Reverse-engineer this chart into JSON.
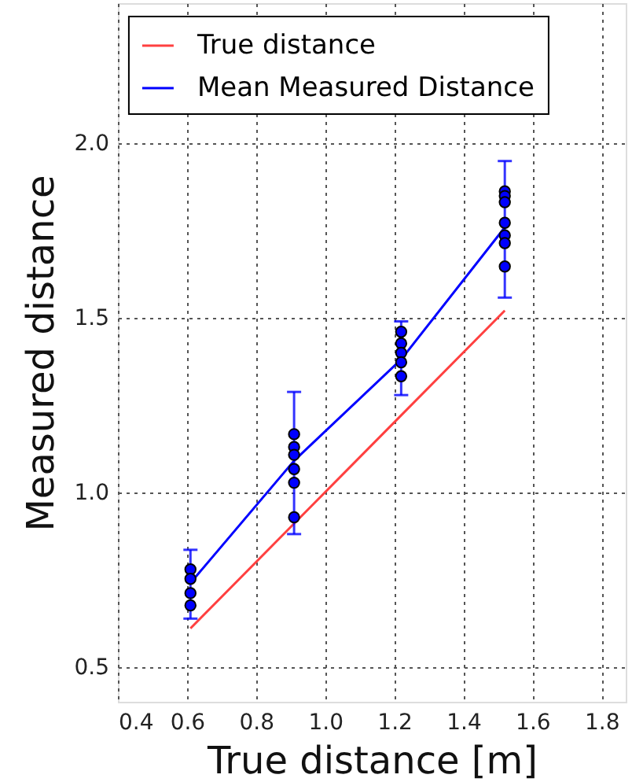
{
  "chart_data": {
    "type": "line",
    "xlabel": "True distance [m]",
    "ylabel": "Measured distance",
    "xlim": [
      0.4,
      1.87
    ],
    "ylim": [
      0.4,
      2.4
    ],
    "xticks": [
      0.4,
      0.6,
      0.8,
      {
        "value": 1,
        "label": "1.0"
      },
      1.2,
      1.4,
      1.6,
      1.8
    ],
    "yticks": [
      0.5,
      {
        "value": 1,
        "label": "1.0"
      },
      1.5,
      {
        "value": 2,
        "label": "2.0"
      }
    ],
    "grid": true,
    "legend": "top",
    "line_style": "solid",
    "series": [
      {
        "name": "True distance",
        "color": "#ff4040",
        "x": [
          0.61,
          0.91,
          1.22,
          1.52
        ],
        "values": [
          0.61,
          0.91,
          1.22,
          1.52
        ]
      },
      {
        "name": "Mean Measured Distance",
        "color": "#0000ff",
        "x": [
          0.61,
          0.91,
          1.22,
          1.52
        ],
        "values": [
          0.74,
          1.09,
          1.38,
          1.758
        ],
        "errors": [
          [
            0.638,
            0.835
          ],
          [
            0.88,
            1.287
          ],
          [
            1.278,
            1.489
          ],
          [
            1.557,
            1.948
          ]
        ]
      },
      {
        "type": "scatter",
        "marker": "circle",
        "color": "#0000ff",
        "x": [
          0.61,
          0.61,
          0.61,
          0.61,
          0.91,
          0.91,
          0.91,
          0.91,
          0.91,
          0.91,
          1.22,
          1.22,
          1.22,
          1.22,
          1.22,
          1.52,
          1.52,
          1.52,
          1.52,
          1.52,
          1.52,
          1.52
        ],
        "values": [
          0.779,
          0.752,
          0.711,
          0.676,
          1.166,
          1.129,
          1.107,
          1.066,
          1.027,
          0.928,
          1.459,
          1.426,
          1.399,
          1.372,
          1.332,
          1.861,
          1.848,
          1.83,
          1.771,
          1.735,
          1.713,
          1.646
        ]
      }
    ]
  }
}
